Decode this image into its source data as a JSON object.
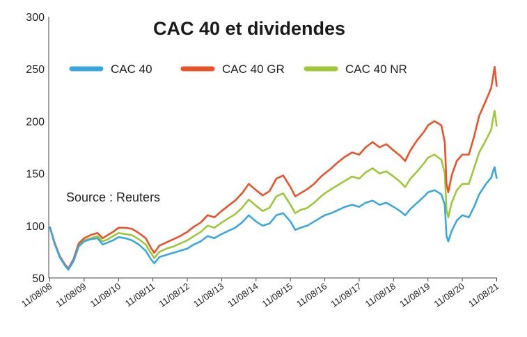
{
  "chart_data": {
    "type": "line",
    "title": "CAC 40 et dividendes",
    "annotation": "Source : Reuters",
    "x_unit": "year",
    "xlim": [
      2008.58,
      2021.62
    ],
    "ylim": [
      50,
      300
    ],
    "yticks": [
      50,
      100,
      150,
      200,
      250,
      300
    ],
    "xticks": [
      {
        "label": "11/08/08",
        "x": 2008.61
      },
      {
        "label": "11/08/09",
        "x": 2009.61
      },
      {
        "label": "11/08/10",
        "x": 2010.61
      },
      {
        "label": "11/08/11",
        "x": 2011.61
      },
      {
        "label": "11/08/12",
        "x": 2012.61
      },
      {
        "label": "11/08/13",
        "x": 2013.61
      },
      {
        "label": "11/08/14",
        "x": 2014.61
      },
      {
        "label": "11/08/15",
        "x": 2015.61
      },
      {
        "label": "11/08/16",
        "x": 2016.61
      },
      {
        "label": "11/08/17",
        "x": 2017.61
      },
      {
        "label": "11/08/18",
        "x": 2018.61
      },
      {
        "label": "11/08/19",
        "x": 2019.61
      },
      {
        "label": "11/08/20",
        "x": 2020.61
      },
      {
        "label": "11/08/21",
        "x": 2021.61
      }
    ],
    "legend_position": "top",
    "grid": false,
    "x": [
      2008.61,
      2008.75,
      2008.9,
      2009.05,
      2009.15,
      2009.3,
      2009.45,
      2009.61,
      2009.8,
      2010.0,
      2010.15,
      2010.3,
      2010.45,
      2010.61,
      2010.8,
      2011.0,
      2011.2,
      2011.4,
      2011.55,
      2011.65,
      2011.8,
      2012.0,
      2012.2,
      2012.4,
      2012.61,
      2012.8,
      2013.0,
      2013.2,
      2013.4,
      2013.61,
      2013.8,
      2014.0,
      2014.2,
      2014.4,
      2014.61,
      2014.8,
      2015.0,
      2015.2,
      2015.4,
      2015.61,
      2015.75,
      2015.9,
      2016.1,
      2016.3,
      2016.5,
      2016.61,
      2016.8,
      2017.0,
      2017.2,
      2017.4,
      2017.61,
      2017.8,
      2018.0,
      2018.2,
      2018.4,
      2018.61,
      2018.8,
      2018.95,
      2019.1,
      2019.3,
      2019.5,
      2019.61,
      2019.8,
      2020.0,
      2020.1,
      2020.15,
      2020.2,
      2020.3,
      2020.45,
      2020.61,
      2020.8,
      2020.95,
      2021.1,
      2021.3,
      2021.45,
      2021.5,
      2021.55,
      2021.61
    ],
    "series": [
      {
        "name": "CAC 40",
        "color": "#3aa7e0",
        "values": [
          99,
          83,
          70,
          62,
          58,
          66,
          80,
          85,
          87,
          88,
          82,
          84,
          86,
          89,
          88,
          86,
          82,
          76,
          68,
          64,
          70,
          72,
          74,
          76,
          78,
          82,
          85,
          90,
          88,
          92,
          95,
          98,
          103,
          110,
          104,
          100,
          102,
          110,
          112,
          104,
          96,
          98,
          100,
          104,
          108,
          110,
          112,
          115,
          118,
          120,
          118,
          122,
          124,
          120,
          122,
          118,
          114,
          110,
          116,
          122,
          128,
          132,
          134,
          130,
          120,
          90,
          85,
          95,
          105,
          110,
          108,
          118,
          130,
          140,
          146,
          152,
          156,
          145
        ]
      },
      {
        "name": "CAC 40 GR",
        "color": "#e8532a",
        "values": [
          99,
          84,
          71,
          63,
          59,
          68,
          83,
          88,
          91,
          93,
          88,
          91,
          94,
          98,
          98,
          97,
          93,
          88,
          79,
          74,
          81,
          84,
          87,
          90,
          94,
          99,
          103,
          110,
          108,
          114,
          119,
          124,
          131,
          140,
          134,
          129,
          133,
          145,
          148,
          137,
          128,
          131,
          135,
          140,
          147,
          150,
          155,
          161,
          166,
          170,
          168,
          175,
          180,
          175,
          178,
          172,
          167,
          162,
          172,
          182,
          190,
          196,
          200,
          196,
          180,
          140,
          132,
          148,
          162,
          168,
          168,
          185,
          205,
          220,
          232,
          242,
          252,
          233
        ]
      },
      {
        "name": "CAC 40 NR",
        "color": "#9cc83a",
        "values": [
          99,
          83,
          70,
          62,
          58,
          67,
          81,
          86,
          88,
          90,
          85,
          87,
          90,
          93,
          92,
          91,
          87,
          82,
          74,
          69,
          75,
          78,
          80,
          83,
          86,
          90,
          94,
          100,
          98,
          103,
          107,
          111,
          117,
          125,
          119,
          114,
          117,
          128,
          131,
          120,
          112,
          115,
          117,
          122,
          128,
          131,
          135,
          139,
          143,
          147,
          145,
          151,
          155,
          150,
          152,
          147,
          142,
          137,
          145,
          152,
          160,
          165,
          168,
          163,
          150,
          115,
          108,
          122,
          134,
          140,
          140,
          155,
          170,
          182,
          192,
          202,
          210,
          195
        ]
      }
    ]
  }
}
